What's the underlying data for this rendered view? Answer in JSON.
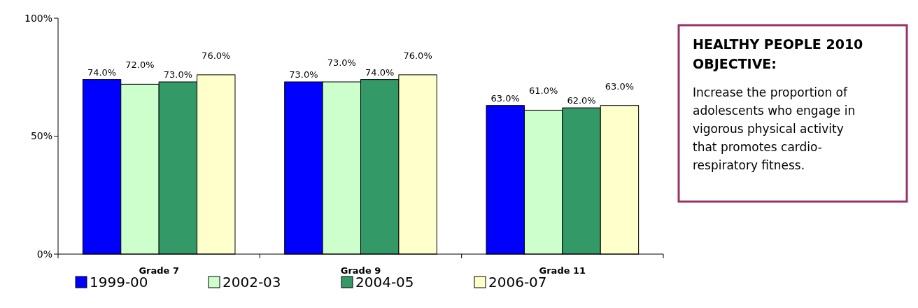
{
  "chart_data": {
    "type": "bar",
    "categories": [
      "Grade 7",
      "Grade 9",
      "Grade 11"
    ],
    "series": [
      {
        "name": "1999-00",
        "color": "#0000ff",
        "values": [
          74,
          73,
          63
        ],
        "value_labels": [
          "74.0%",
          "73.0%",
          "63.0%"
        ]
      },
      {
        "name": "2002-03",
        "color": "#ccffcc",
        "values": [
          72,
          73,
          61
        ],
        "value_labels": [
          "72.0%",
          "73.0%",
          "61.0%"
        ]
      },
      {
        "name": "2004-05",
        "color": "#339966",
        "values": [
          73,
          74,
          62
        ],
        "value_labels": [
          "73.0%",
          "74.0%",
          "62.0%"
        ]
      },
      {
        "name": "2006-07",
        "color": "#ffffcc",
        "values": [
          76,
          76,
          63
        ],
        "value_labels": [
          "76.0%",
          "76.0%",
          "63.0%"
        ]
      }
    ],
    "ylim": [
      0,
      100
    ],
    "yticks": [
      {
        "value": 0,
        "label": "0%"
      },
      {
        "value": 50,
        "label": "50%"
      },
      {
        "value": 100,
        "label": "100%"
      }
    ],
    "legend": "bottom",
    "grid": false,
    "annotations": [
      "HEALTHY PEOPLE 2010 OBJECTIVE:",
      "Increase the proportion of adolescents who engage in vigorous physical activity that promotes cardio-respiratory fitness."
    ]
  }
}
